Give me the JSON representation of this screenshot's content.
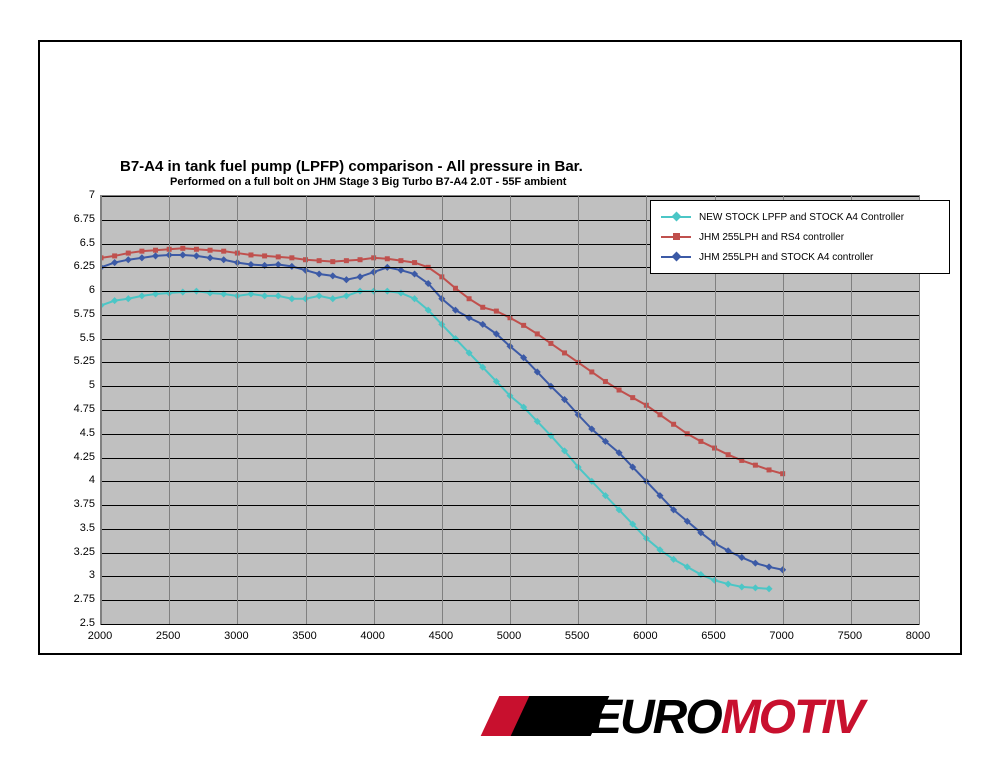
{
  "title": "B7-A4 in tank fuel pump (LPFP) comparison - All pressure in Bar.",
  "subtitle": "Performed on a full bolt on JHM Stage 3 Big Turbo B7-A4 2.0T - 55F ambient",
  "plot": {
    "background_color": "#c0c0c0",
    "grid_color_h": "#000000",
    "grid_color_v": "#808080",
    "border_color": "#808080",
    "xlim": [
      2000,
      8000
    ],
    "ylim": [
      2.5,
      7
    ],
    "xticks": [
      2000,
      2500,
      3000,
      3500,
      4000,
      4500,
      5000,
      5500,
      6000,
      6500,
      7000,
      7500,
      8000
    ],
    "yticks": [
      2.5,
      2.75,
      3,
      3.25,
      3.5,
      3.75,
      4,
      4.25,
      4.5,
      4.75,
      5,
      5.25,
      5.5,
      5.75,
      6,
      6.25,
      6.5,
      6.75,
      7
    ]
  },
  "legend": {
    "position": "top-right",
    "background": "#ffffff",
    "border": "#000000",
    "fontsize": 10,
    "items": [
      {
        "label": "NEW STOCK LPFP and STOCK A4 Controller",
        "color": "#4bc6c6",
        "marker": "diamond"
      },
      {
        "label": "JHM 255LPH and RS4 controller",
        "color": "#c0504d",
        "marker": "square"
      },
      {
        "label": "JHM 255LPH and STOCK A4 controller",
        "color": "#3c5aa6",
        "marker": "diamond"
      }
    ]
  },
  "series": [
    {
      "name": "NEW STOCK LPFP and STOCK A4 Controller",
      "color": "#4bc6c6",
      "marker": "diamond",
      "line_width": 2,
      "x": [
        2000,
        2100,
        2200,
        2300,
        2400,
        2500,
        2600,
        2700,
        2800,
        2900,
        3000,
        3100,
        3200,
        3300,
        3400,
        3500,
        3600,
        3700,
        3800,
        3900,
        4000,
        4100,
        4200,
        4300,
        4400,
        4500,
        4600,
        4700,
        4800,
        4900,
        5000,
        5100,
        5200,
        5300,
        5400,
        5500,
        5600,
        5700,
        5800,
        5900,
        6000,
        6100,
        6200,
        6300,
        6400,
        6500,
        6600,
        6700,
        6800,
        6900
      ],
      "y": [
        5.85,
        5.9,
        5.92,
        5.95,
        5.97,
        5.98,
        5.99,
        6.0,
        5.98,
        5.97,
        5.95,
        5.97,
        5.95,
        5.95,
        5.92,
        5.92,
        5.95,
        5.92,
        5.95,
        6.0,
        6.0,
        6.0,
        5.98,
        5.92,
        5.8,
        5.65,
        5.5,
        5.35,
        5.2,
        5.05,
        4.9,
        4.78,
        4.63,
        4.48,
        4.32,
        4.15,
        4.0,
        3.85,
        3.7,
        3.55,
        3.4,
        3.28,
        3.18,
        3.1,
        3.02,
        2.96,
        2.92,
        2.89,
        2.88,
        2.87
      ]
    },
    {
      "name": "JHM 255LPH and RS4 controller",
      "color": "#c0504d",
      "marker": "square",
      "line_width": 2,
      "x": [
        2000,
        2100,
        2200,
        2300,
        2400,
        2500,
        2600,
        2700,
        2800,
        2900,
        3000,
        3100,
        3200,
        3300,
        3400,
        3500,
        3600,
        3700,
        3800,
        3900,
        4000,
        4100,
        4200,
        4300,
        4400,
        4500,
        4600,
        4700,
        4800,
        4900,
        5000,
        5100,
        5200,
        5300,
        5400,
        5500,
        5600,
        5700,
        5800,
        5900,
        6000,
        6100,
        6200,
        6300,
        6400,
        6500,
        6600,
        6700,
        6800,
        6900,
        7000
      ],
      "y": [
        6.35,
        6.37,
        6.4,
        6.42,
        6.43,
        6.44,
        6.45,
        6.44,
        6.43,
        6.42,
        6.4,
        6.38,
        6.37,
        6.36,
        6.35,
        6.33,
        6.32,
        6.31,
        6.32,
        6.33,
        6.35,
        6.34,
        6.32,
        6.3,
        6.25,
        6.15,
        6.03,
        5.92,
        5.83,
        5.79,
        5.72,
        5.64,
        5.55,
        5.45,
        5.35,
        5.25,
        5.15,
        5.05,
        4.96,
        4.88,
        4.8,
        4.7,
        4.6,
        4.5,
        4.42,
        4.35,
        4.28,
        4.22,
        4.17,
        4.12,
        4.08
      ]
    },
    {
      "name": "JHM 255LPH and STOCK A4 controller",
      "color": "#3c5aa6",
      "marker": "diamond",
      "line_width": 2,
      "x": [
        2000,
        2100,
        2200,
        2300,
        2400,
        2500,
        2600,
        2700,
        2800,
        2900,
        3000,
        3100,
        3200,
        3300,
        3400,
        3500,
        3600,
        3700,
        3800,
        3900,
        4000,
        4100,
        4200,
        4300,
        4400,
        4500,
        4600,
        4700,
        4800,
        4900,
        5000,
        5100,
        5200,
        5300,
        5400,
        5500,
        5600,
        5700,
        5800,
        5900,
        6000,
        6100,
        6200,
        6300,
        6400,
        6500,
        6600,
        6700,
        6800,
        6900,
        7000
      ],
      "y": [
        6.25,
        6.3,
        6.33,
        6.35,
        6.37,
        6.38,
        6.38,
        6.37,
        6.35,
        6.33,
        6.3,
        6.28,
        6.27,
        6.28,
        6.26,
        6.22,
        6.18,
        6.16,
        6.12,
        6.15,
        6.2,
        6.25,
        6.22,
        6.18,
        6.08,
        5.92,
        5.8,
        5.72,
        5.65,
        5.55,
        5.42,
        5.3,
        5.15,
        5.0,
        4.86,
        4.7,
        4.55,
        4.42,
        4.3,
        4.15,
        4.0,
        3.85,
        3.7,
        3.58,
        3.46,
        3.35,
        3.27,
        3.2,
        3.14,
        3.1,
        3.07
      ]
    }
  ],
  "logo": {
    "text_black": "EURO",
    "text_red": "MOTIV",
    "skew_color_1": "#c8102e",
    "skew_color_2": "#000000"
  }
}
